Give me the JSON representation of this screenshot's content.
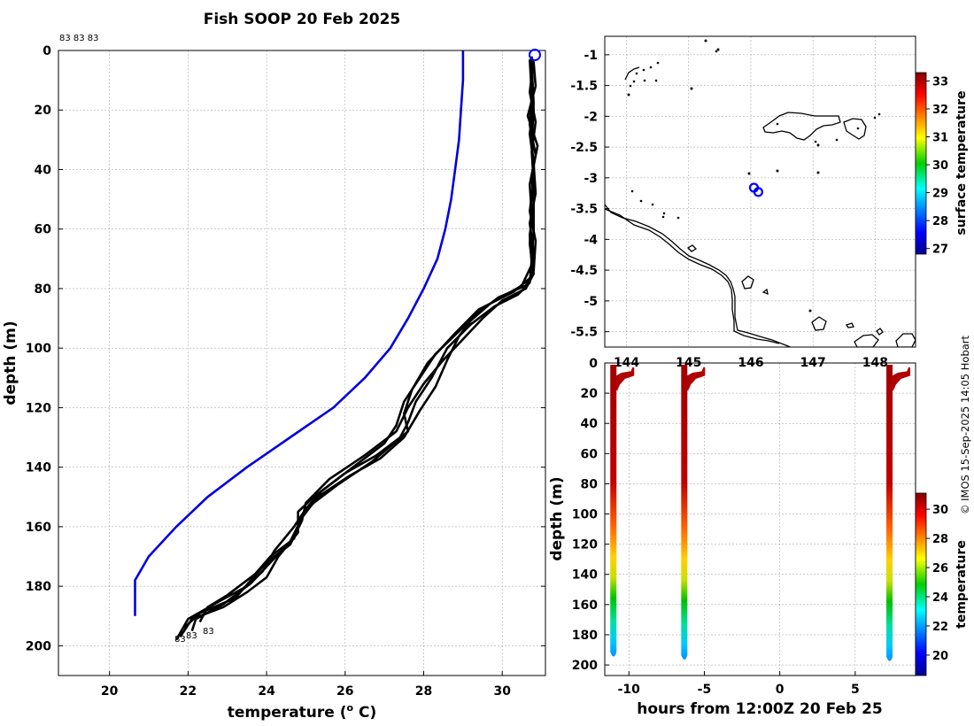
{
  "title": "Fish SOOP 20 Feb 2025",
  "copyright": "© IMOS 15-Sep-2025 14:05 Hobart",
  "profile_ids_top": "83 83 83",
  "profile_labels": [
    "83",
    "83",
    "83"
  ],
  "colors": {
    "climatology": "#0000e0",
    "profile": "#000000",
    "marker": "#0000ff"
  },
  "chart_data": [
    {
      "id": "depth_profiles",
      "type": "line",
      "xlabel": "temperature (o C)",
      "xlabel_main": "temperature (",
      "xlabel_sup": "o",
      "xlabel_end": " C)",
      "ylabel": "depth (m)",
      "xlim": [
        18.7,
        31.1
      ],
      "ylim": [
        0,
        210
      ],
      "xticks": [
        "20",
        "22",
        "24",
        "26",
        "28",
        "30"
      ],
      "yticks": [
        "0",
        "20",
        "40",
        "60",
        "80",
        "100",
        "120",
        "140",
        "160",
        "180",
        "200"
      ],
      "series": [
        {
          "name": "climatology",
          "color": "#0000e0",
          "points": [
            [
              29.0,
              0
            ],
            [
              29.0,
              10
            ],
            [
              28.95,
              20
            ],
            [
              28.9,
              30
            ],
            [
              28.8,
              40
            ],
            [
              28.7,
              50
            ],
            [
              28.55,
              60
            ],
            [
              28.35,
              70
            ],
            [
              28.0,
              80
            ],
            [
              27.6,
              90
            ],
            [
              27.15,
              100
            ],
            [
              26.5,
              110
            ],
            [
              25.7,
              120
            ],
            [
              24.6,
              130
            ],
            [
              23.5,
              140
            ],
            [
              22.5,
              150
            ],
            [
              21.7,
              160
            ],
            [
              21.0,
              170
            ],
            [
              20.65,
              178
            ],
            [
              20.65,
              190
            ]
          ]
        },
        {
          "name": "profile 1",
          "color": "#000000",
          "points": [
            [
              30.75,
              2
            ],
            [
              30.75,
              10
            ],
            [
              30.8,
              20
            ],
            [
              30.75,
              30
            ],
            [
              30.8,
              40
            ],
            [
              30.8,
              50
            ],
            [
              30.8,
              60
            ],
            [
              30.75,
              70
            ],
            [
              30.7,
              78
            ],
            [
              30.4,
              82
            ],
            [
              29.8,
              86
            ],
            [
              29.2,
              92
            ],
            [
              28.6,
              100
            ],
            [
              28.2,
              110
            ],
            [
              27.8,
              118
            ],
            [
              27.6,
              125
            ],
            [
              27.4,
              130
            ],
            [
              26.8,
              136
            ],
            [
              26.0,
              142
            ],
            [
              25.2,
              150
            ],
            [
              24.8,
              155
            ],
            [
              24.8,
              162
            ],
            [
              24.3,
              170
            ],
            [
              24.0,
              177
            ],
            [
              23.5,
              182
            ],
            [
              22.9,
              187
            ],
            [
              22.1,
              191
            ],
            [
              21.8,
              197
            ]
          ]
        },
        {
          "name": "profile 2",
          "color": "#000000",
          "points": [
            [
              30.7,
              3
            ],
            [
              30.75,
              15
            ],
            [
              30.7,
              25
            ],
            [
              30.85,
              35
            ],
            [
              30.7,
              45
            ],
            [
              30.75,
              55
            ],
            [
              30.7,
              65
            ],
            [
              30.8,
              75
            ],
            [
              30.6,
              80
            ],
            [
              30.0,
              84
            ],
            [
              29.5,
              90
            ],
            [
              29.0,
              97
            ],
            [
              28.5,
              104
            ],
            [
              28.0,
              112
            ],
            [
              27.6,
              120
            ],
            [
              27.3,
              128
            ],
            [
              26.5,
              136
            ],
            [
              25.6,
              144
            ],
            [
              25.0,
              152
            ],
            [
              24.9,
              158
            ],
            [
              24.6,
              166
            ],
            [
              24.0,
              172
            ],
            [
              23.6,
              178
            ],
            [
              23.2,
              184
            ],
            [
              22.3,
              189
            ],
            [
              21.9,
              194
            ]
          ]
        },
        {
          "name": "profile 3",
          "color": "#000000",
          "points": [
            [
              30.8,
              4
            ],
            [
              30.85,
              12
            ],
            [
              30.65,
              22
            ],
            [
              30.9,
              32
            ],
            [
              30.75,
              42
            ],
            [
              30.8,
              52
            ],
            [
              30.7,
              62
            ],
            [
              30.75,
              72
            ],
            [
              30.5,
              79
            ],
            [
              29.7,
              85
            ],
            [
              29.0,
              93
            ],
            [
              28.3,
              102
            ],
            [
              27.9,
              110
            ],
            [
              27.5,
              118
            ],
            [
              27.3,
              126
            ],
            [
              27.0,
              132
            ],
            [
              26.2,
              140
            ],
            [
              25.4,
              148
            ],
            [
              25.0,
              154
            ],
            [
              24.7,
              160
            ],
            [
              24.2,
              168
            ],
            [
              23.9,
              175
            ],
            [
              23.5,
              180
            ],
            [
              22.8,
              185
            ],
            [
              22.0,
              191
            ],
            [
              21.7,
              198
            ]
          ]
        },
        {
          "name": "profile 4",
          "color": "#000000",
          "points": [
            [
              30.75,
              5
            ],
            [
              30.8,
              18
            ],
            [
              30.7,
              28
            ],
            [
              30.8,
              38
            ],
            [
              30.85,
              48
            ],
            [
              30.7,
              58
            ],
            [
              30.8,
              68
            ],
            [
              30.75,
              76
            ],
            [
              30.3,
              81
            ],
            [
              29.4,
              87
            ],
            [
              28.8,
              95
            ],
            [
              28.1,
              105
            ],
            [
              27.7,
              114
            ],
            [
              27.5,
              122
            ],
            [
              27.6,
              128
            ],
            [
              26.7,
              138
            ],
            [
              25.8,
              146
            ],
            [
              25.2,
              152
            ],
            [
              24.9,
              156
            ],
            [
              24.7,
              164
            ],
            [
              24.1,
              170
            ],
            [
              23.7,
              176
            ],
            [
              23.0,
              183
            ],
            [
              22.5,
              187
            ],
            [
              22.3,
              192
            ]
          ]
        },
        {
          "name": "profile 5",
          "color": "#000000",
          "points": [
            [
              30.8,
              3
            ],
            [
              30.7,
              14
            ],
            [
              30.85,
              24
            ],
            [
              30.75,
              34
            ],
            [
              30.8,
              44
            ],
            [
              30.7,
              54
            ],
            [
              30.85,
              64
            ],
            [
              30.8,
              74
            ],
            [
              30.6,
              79
            ],
            [
              29.9,
              83
            ],
            [
              29.3,
              89
            ],
            [
              28.9,
              96
            ],
            [
              28.6,
              104
            ],
            [
              28.3,
              113
            ],
            [
              27.9,
              121
            ],
            [
              27.5,
              130
            ],
            [
              26.9,
              137
            ],
            [
              26.1,
              143
            ],
            [
              25.3,
              150
            ],
            [
              24.9,
              157
            ],
            [
              24.6,
              165
            ],
            [
              24.1,
              172
            ],
            [
              23.6,
              179
            ],
            [
              22.9,
              186
            ],
            [
              22.2,
              191
            ],
            [
              22.1,
              195
            ]
          ]
        }
      ]
    },
    {
      "id": "map",
      "type": "scatter",
      "title": "",
      "xlim": [
        143.65,
        148.65
      ],
      "ylim": [
        -5.75,
        -0.7
      ],
      "xticks": [
        "144",
        "145",
        "146",
        "147",
        "148"
      ],
      "yticks": [
        "-1",
        "-1.5",
        "-2",
        "-2.5",
        "-3",
        "-3.5",
        "-4",
        "-4.5",
        "-5",
        "-5.5"
      ],
      "points": [
        [
          146.05,
          -3.16
        ],
        [
          146.12,
          -3.23
        ]
      ],
      "colorbar_label": "surface temperature",
      "colorbar_ticks": [
        "27",
        "28",
        "29",
        "30",
        "31",
        "32",
        "33"
      ],
      "colorbar_range": [
        26.8,
        33.3
      ]
    },
    {
      "id": "time_depth",
      "type": "heatmap",
      "xlabel": "hours from 12:00Z 20 Feb 25",
      "ylabel": "depth (m)",
      "xlim": [
        -11.6,
        9.0
      ],
      "ylim": [
        0,
        207
      ],
      "xticks": [
        "-10",
        "-5",
        "0",
        "5"
      ],
      "yticks": [
        "0",
        "20",
        "40",
        "60",
        "80",
        "100",
        "120",
        "140",
        "160",
        "180",
        "200"
      ],
      "casts": [
        {
          "hours": -11.0,
          "max_depth": 195
        },
        {
          "hours": -6.3,
          "max_depth": 197
        },
        {
          "hours": 7.3,
          "max_depth": 198
        }
      ],
      "colorbar_label": "temperature",
      "colorbar_ticks": [
        "20",
        "22",
        "24",
        "26",
        "28",
        "30"
      ],
      "colorbar_range": [
        18.6,
        31.1
      ]
    }
  ]
}
